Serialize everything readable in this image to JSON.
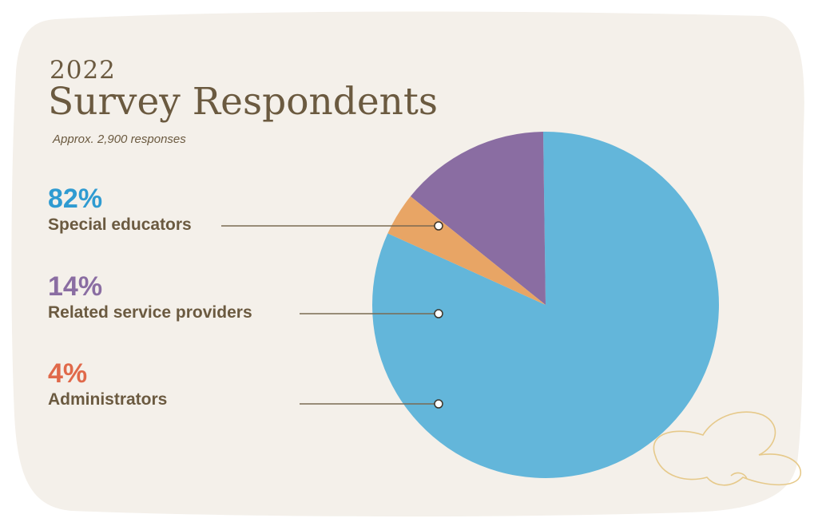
{
  "header": {
    "year": "2022",
    "title": "Survey Respondents",
    "subtitle": "Approx. 2,900 responses"
  },
  "colors": {
    "background_card": "#f4f0ea",
    "text": "#6b5a40",
    "leader_line": "#7a6a52",
    "doodle": "#e6c98a"
  },
  "chart_data": {
    "type": "pie",
    "title": "Survey Respondents",
    "slices": [
      {
        "label": "Special educators",
        "percent_label": "82%",
        "value": 82,
        "color": "#63b6da",
        "label_color": "#2f9bd1"
      },
      {
        "label": "Related service providers",
        "percent_label": "14%",
        "value": 14,
        "color": "#8a6da2",
        "label_color": "#8a6da2"
      },
      {
        "label": "Administrators",
        "percent_label": "4%",
        "value": 4,
        "color": "#e8a565",
        "label_color": "#e0694a"
      }
    ],
    "legend_placement": "left"
  }
}
